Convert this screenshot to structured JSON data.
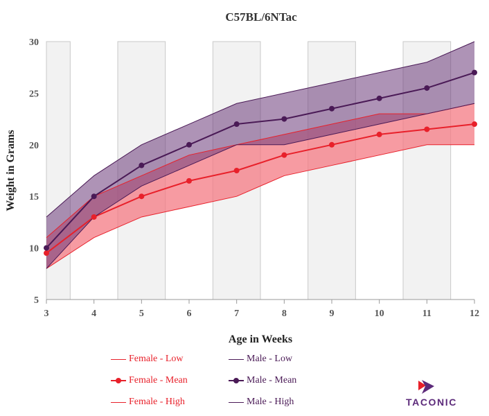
{
  "chart_data": {
    "type": "area",
    "title": "C57BL/6NTac",
    "xlabel": "Age in Weeks",
    "ylabel": "Weight in Grams",
    "x": [
      3,
      4,
      5,
      6,
      7,
      8,
      9,
      10,
      11,
      12
    ],
    "xlim": [
      3,
      12
    ],
    "ylim": [
      5,
      30
    ],
    "yticks": [
      5,
      10,
      15,
      20,
      25,
      30
    ],
    "series": [
      {
        "name": "Female - Low",
        "group": "female",
        "kind": "low",
        "color": "#e8202a",
        "values": [
          8,
          11,
          13,
          14,
          15,
          17,
          18,
          19,
          20,
          20
        ]
      },
      {
        "name": "Female - Mean",
        "group": "female",
        "kind": "mean",
        "color": "#e8202a",
        "values": [
          9.5,
          13,
          15,
          16.5,
          17.5,
          19,
          20,
          21,
          21.5,
          22
        ]
      },
      {
        "name": "Female - High",
        "group": "female",
        "kind": "high",
        "color": "#e8202a",
        "values": [
          11,
          15,
          17,
          19,
          20,
          21,
          22,
          23,
          23,
          24
        ]
      },
      {
        "name": "Male - Low",
        "group": "male",
        "kind": "low",
        "color": "#4a1a56",
        "values": [
          8,
          13,
          16,
          18,
          20,
          20,
          21,
          22,
          23,
          24
        ]
      },
      {
        "name": "Male - Mean",
        "group": "male",
        "kind": "mean",
        "color": "#4a1a56",
        "values": [
          10,
          15,
          18,
          20,
          22,
          22.5,
          23.5,
          24.5,
          25.5,
          27
        ]
      },
      {
        "name": "Male - High",
        "group": "male",
        "kind": "high",
        "color": "#4a1a56",
        "values": [
          13,
          17,
          20,
          22,
          24,
          25,
          26,
          27,
          28,
          30
        ]
      }
    ],
    "fills": {
      "female": "#f47a83",
      "male": "#6b3a7a"
    },
    "grid": "alternating shaded vertical bands",
    "legend_position": "bottom"
  },
  "brand": {
    "logo_text": "TACONIC",
    "logo_color": "#5c2a7a",
    "logo_accent": "#e8202a"
  }
}
